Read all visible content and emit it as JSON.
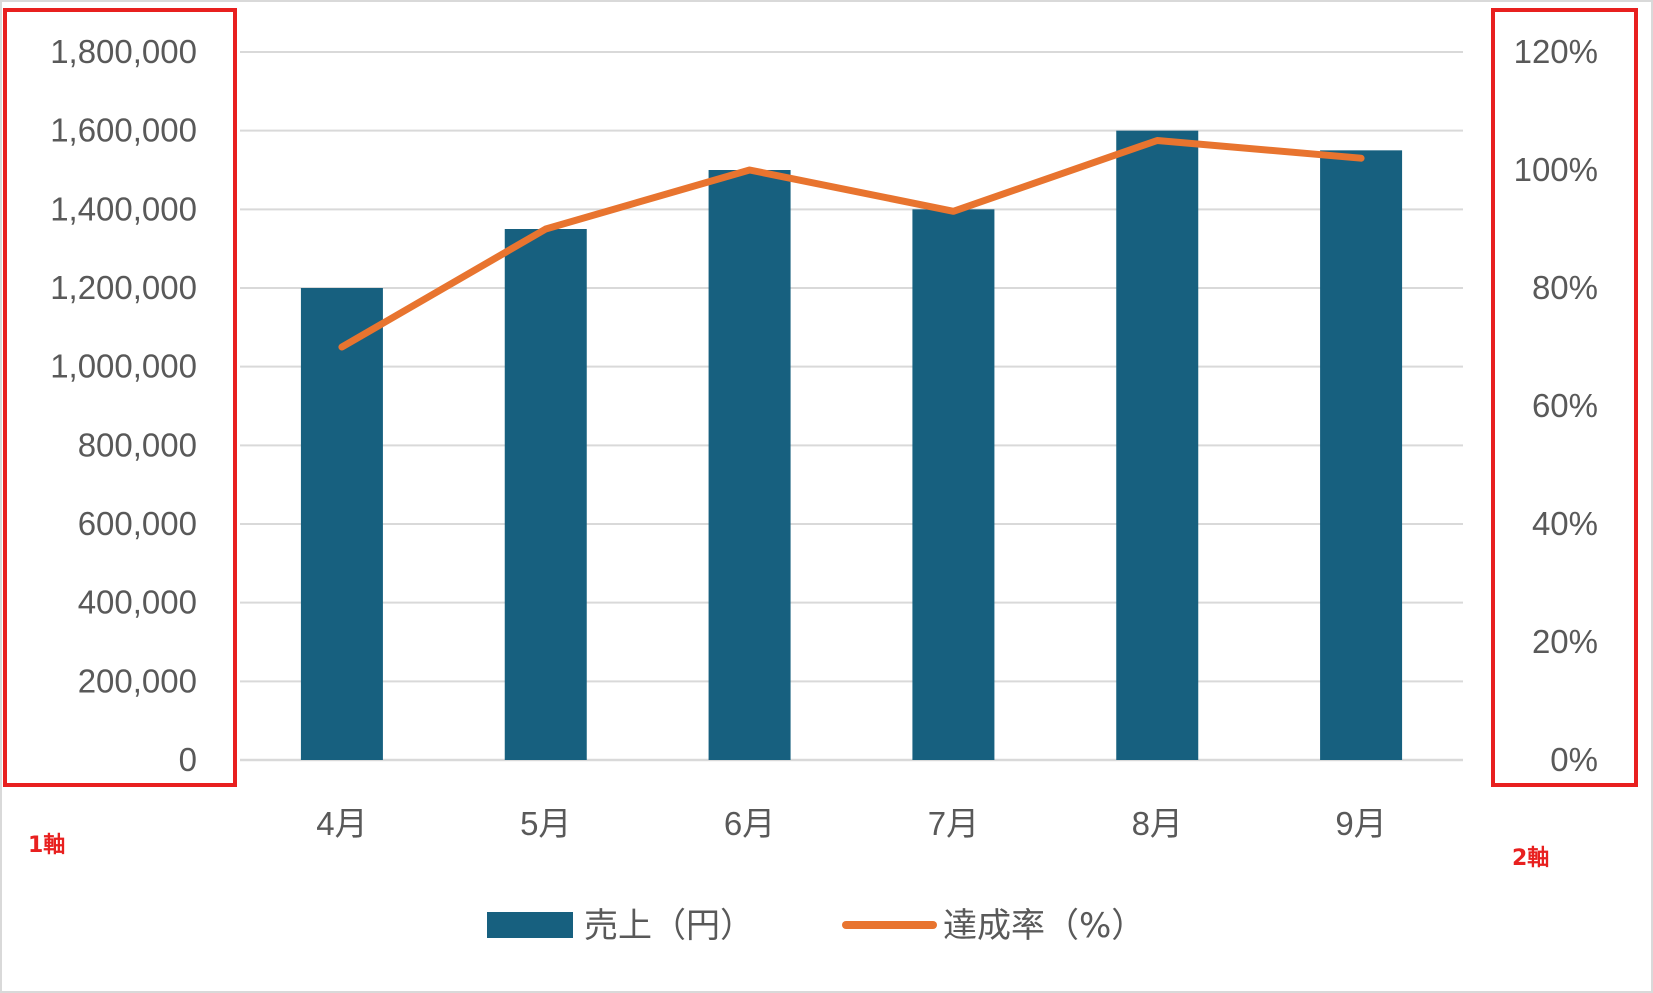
{
  "chart_data": {
    "type": "bar",
    "categories": [
      "4月",
      "5月",
      "6月",
      "7月",
      "8月",
      "9月"
    ],
    "series": [
      {
        "name": "売上（円）",
        "type": "bar",
        "axis": "left",
        "color": "#17607f",
        "values": [
          1200000,
          1350000,
          1500000,
          1400000,
          1600000,
          1550000
        ]
      },
      {
        "name": "達成率（%）",
        "type": "line",
        "axis": "right",
        "color": "#e8742f",
        "values": [
          0.7,
          0.9,
          1.0,
          0.93,
          1.05,
          1.02
        ]
      }
    ],
    "y_left": {
      "range": [
        0,
        1800000
      ],
      "ticks": [
        0,
        200000,
        400000,
        600000,
        800000,
        1000000,
        1200000,
        1400000,
        1600000,
        1800000
      ],
      "tick_labels": [
        "0",
        "200,000",
        "400,000",
        "600,000",
        "800,000",
        "1,000,000",
        "1,200,000",
        "1,400,000",
        "1,600,000",
        "1,800,000"
      ]
    },
    "y_right": {
      "range": [
        0,
        1.2
      ],
      "ticks": [
        0,
        0.2,
        0.4,
        0.6,
        0.8,
        1.0,
        1.2
      ],
      "tick_labels": [
        "0%",
        "20%",
        "40%",
        "60%",
        "80%",
        "100%",
        "120%"
      ]
    },
    "grid": true,
    "legend_position": "bottom",
    "annotations": [
      {
        "text": "1軸",
        "target": "left axis",
        "color": "#e8201f"
      },
      {
        "text": "2軸",
        "target": "right axis",
        "color": "#e8201f"
      }
    ]
  },
  "colors": {
    "gridline": "#d9d9d9",
    "tick_text": "#595959",
    "highlight_box": "#e8201f",
    "frame": "#d9d9d9"
  }
}
